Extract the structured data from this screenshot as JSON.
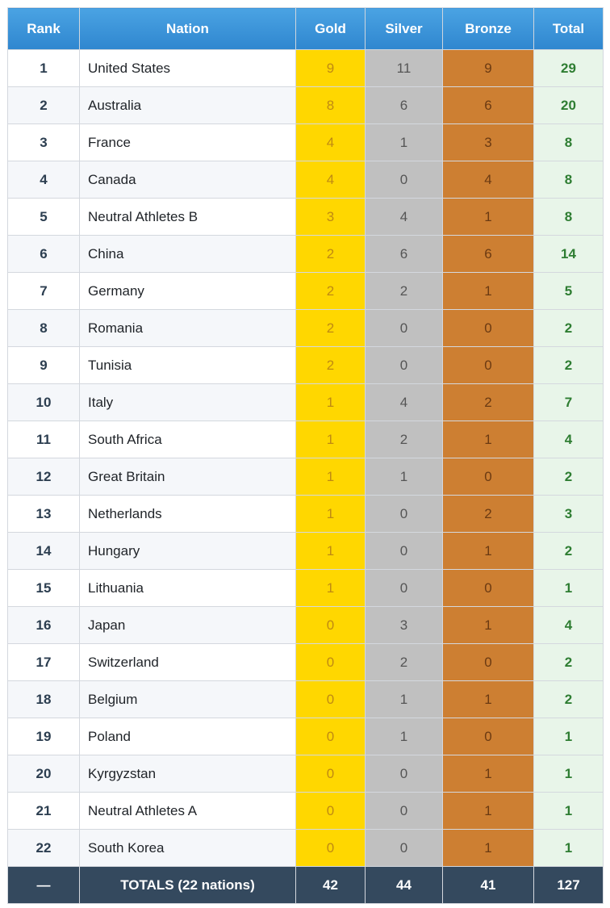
{
  "headers": {
    "rank": "Rank",
    "nation": "Nation",
    "gold": "Gold",
    "silver": "Silver",
    "bronze": "Bronze",
    "total": "Total"
  },
  "rows": [
    {
      "rank": "1",
      "nation": "United States",
      "gold": "9",
      "silver": "11",
      "bronze": "9",
      "total": "29"
    },
    {
      "rank": "2",
      "nation": "Australia",
      "gold": "8",
      "silver": "6",
      "bronze": "6",
      "total": "20"
    },
    {
      "rank": "3",
      "nation": "France",
      "gold": "4",
      "silver": "1",
      "bronze": "3",
      "total": "8"
    },
    {
      "rank": "4",
      "nation": "Canada",
      "gold": "4",
      "silver": "0",
      "bronze": "4",
      "total": "8"
    },
    {
      "rank": "5",
      "nation": "Neutral Athletes B",
      "gold": "3",
      "silver": "4",
      "bronze": "1",
      "total": "8"
    },
    {
      "rank": "6",
      "nation": "China",
      "gold": "2",
      "silver": "6",
      "bronze": "6",
      "total": "14"
    },
    {
      "rank": "7",
      "nation": "Germany",
      "gold": "2",
      "silver": "2",
      "bronze": "1",
      "total": "5"
    },
    {
      "rank": "8",
      "nation": "Romania",
      "gold": "2",
      "silver": "0",
      "bronze": "0",
      "total": "2"
    },
    {
      "rank": "9",
      "nation": "Tunisia",
      "gold": "2",
      "silver": "0",
      "bronze": "0",
      "total": "2"
    },
    {
      "rank": "10",
      "nation": "Italy",
      "gold": "1",
      "silver": "4",
      "bronze": "2",
      "total": "7"
    },
    {
      "rank": "11",
      "nation": "South Africa",
      "gold": "1",
      "silver": "2",
      "bronze": "1",
      "total": "4"
    },
    {
      "rank": "12",
      "nation": "Great Britain",
      "gold": "1",
      "silver": "1",
      "bronze": "0",
      "total": "2"
    },
    {
      "rank": "13",
      "nation": "Netherlands",
      "gold": "1",
      "silver": "0",
      "bronze": "2",
      "total": "3"
    },
    {
      "rank": "14",
      "nation": "Hungary",
      "gold": "1",
      "silver": "0",
      "bronze": "1",
      "total": "2"
    },
    {
      "rank": "15",
      "nation": "Lithuania",
      "gold": "1",
      "silver": "0",
      "bronze": "0",
      "total": "1"
    },
    {
      "rank": "16",
      "nation": "Japan",
      "gold": "0",
      "silver": "3",
      "bronze": "1",
      "total": "4"
    },
    {
      "rank": "17",
      "nation": "Switzerland",
      "gold": "0",
      "silver": "2",
      "bronze": "0",
      "total": "2"
    },
    {
      "rank": "18",
      "nation": "Belgium",
      "gold": "0",
      "silver": "1",
      "bronze": "1",
      "total": "2"
    },
    {
      "rank": "19",
      "nation": "Poland",
      "gold": "0",
      "silver": "1",
      "bronze": "0",
      "total": "1"
    },
    {
      "rank": "20",
      "nation": "Kyrgyzstan",
      "gold": "0",
      "silver": "0",
      "bronze": "1",
      "total": "1"
    },
    {
      "rank": "21",
      "nation": "Neutral Athletes A",
      "gold": "0",
      "silver": "0",
      "bronze": "1",
      "total": "1"
    },
    {
      "rank": "22",
      "nation": "South Korea",
      "gold": "0",
      "silver": "0",
      "bronze": "1",
      "total": "1"
    }
  ],
  "totals": {
    "rank": "—",
    "label": "TOTALS (22 nations)",
    "gold": "42",
    "silver": "44",
    "bronze": "41",
    "total": "127"
  },
  "colors": {
    "header": "#3a94d9",
    "gold": "#ffd700",
    "silver": "#c0c0c0",
    "bronze": "#cd7f32",
    "total_bg": "#e8f5e9",
    "total_text": "#2e7d32",
    "footer": "#34495e"
  }
}
